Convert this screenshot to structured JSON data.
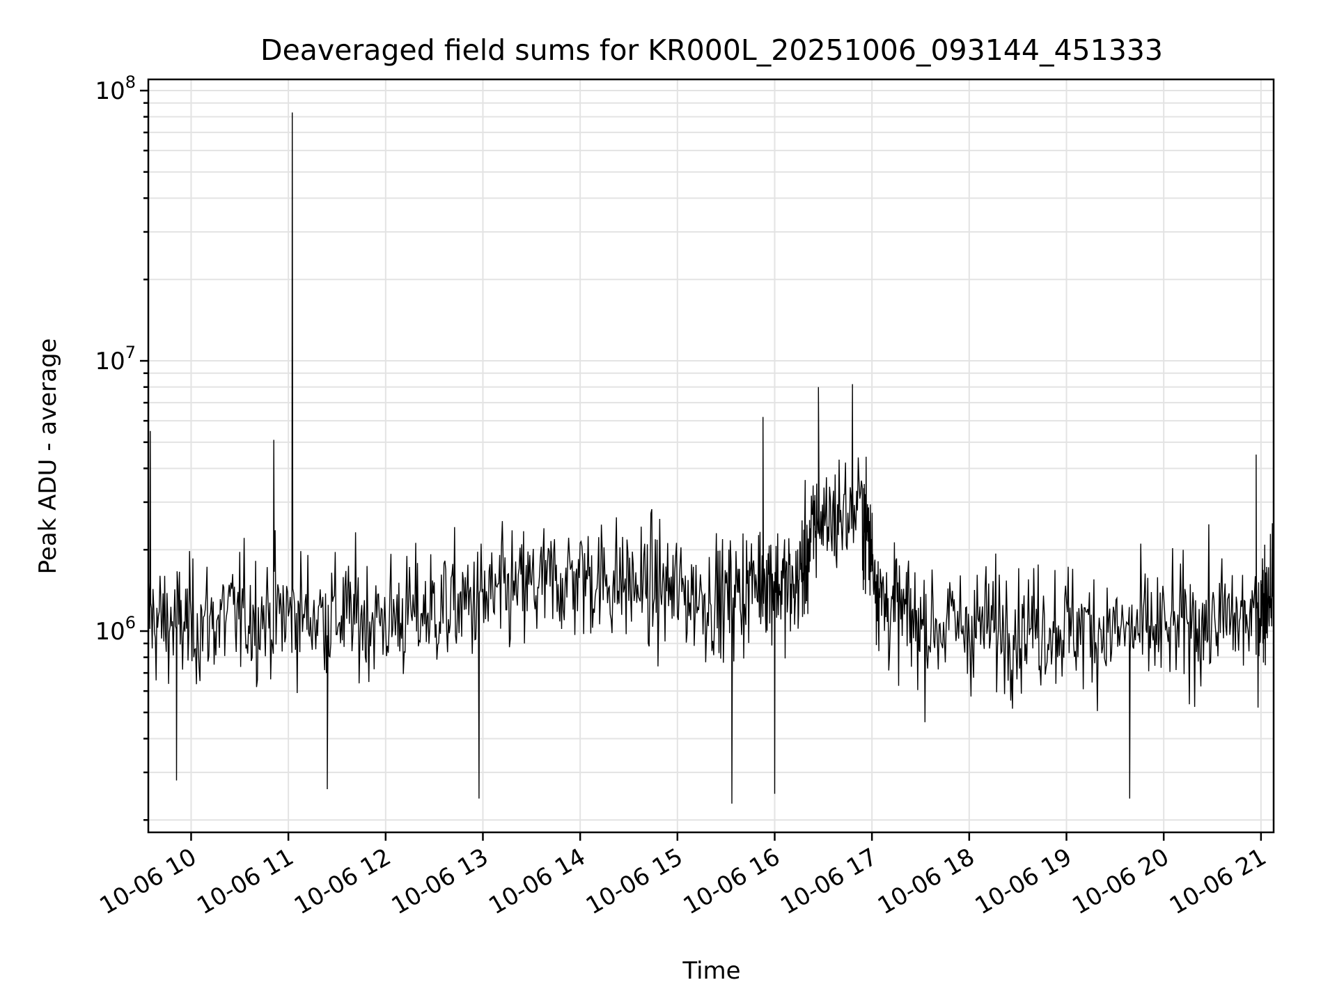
{
  "chart_data": {
    "type": "line",
    "title": "Deaveraged field sums for KR000L_20251006_093144_451333",
    "xlabel": "Time",
    "ylabel": "Peak ADU - average",
    "yscale": "log",
    "ylim": [
      180000,
      110000000
    ],
    "xlim_hours": [
      9.56,
      21.13
    ],
    "grid": true,
    "x_ticks": [
      {
        "hour": 10,
        "label": "10-06 10"
      },
      {
        "hour": 11,
        "label": "10-06 11"
      },
      {
        "hour": 12,
        "label": "10-06 12"
      },
      {
        "hour": 13,
        "label": "10-06 13"
      },
      {
        "hour": 14,
        "label": "10-06 14"
      },
      {
        "hour": 15,
        "label": "10-06 15"
      },
      {
        "hour": 16,
        "label": "10-06 16"
      },
      {
        "hour": 17,
        "label": "10-06 17"
      },
      {
        "hour": 18,
        "label": "10-06 18"
      },
      {
        "hour": 19,
        "label": "10-06 19"
      },
      {
        "hour": 20,
        "label": "10-06 20"
      },
      {
        "hour": 21,
        "label": "10-06 21"
      }
    ],
    "y_ticks": [
      {
        "value": 1000000,
        "base": "10",
        "exp": "6"
      },
      {
        "value": 10000000,
        "base": "10",
        "exp": "7"
      },
      {
        "value": 100000000,
        "base": "10",
        "exp": "8"
      }
    ],
    "series": [
      {
        "name": "Peak ADU - average",
        "color": "#000000",
        "samples_per_segment": 55,
        "baseline_envelope": [
          {
            "hour": 9.56,
            "median": 1100000
          },
          {
            "hour": 10.0,
            "median": 1050000
          },
          {
            "hour": 10.5,
            "median": 1150000
          },
          {
            "hour": 11.0,
            "median": 1150000
          },
          {
            "hour": 11.5,
            "median": 1150000
          },
          {
            "hour": 12.0,
            "median": 1100000
          },
          {
            "hour": 12.5,
            "median": 1200000
          },
          {
            "hour": 13.0,
            "median": 1300000
          },
          {
            "hour": 13.5,
            "median": 1450000
          },
          {
            "hour": 14.0,
            "median": 1600000
          },
          {
            "hour": 14.5,
            "median": 1500000
          },
          {
            "hour": 15.0,
            "median": 1400000
          },
          {
            "hour": 15.5,
            "median": 1300000
          },
          {
            "hour": 15.9,
            "median": 1600000
          },
          {
            "hour": 16.2,
            "median": 1400000
          },
          {
            "hour": 16.45,
            "median": 2600000
          },
          {
            "hour": 16.9,
            "median": 2800000
          },
          {
            "hour": 17.1,
            "median": 1300000
          },
          {
            "hour": 17.5,
            "median": 1050000
          },
          {
            "hour": 18.0,
            "median": 1050000
          },
          {
            "hour": 18.5,
            "median": 1050000
          },
          {
            "hour": 19.0,
            "median": 1050000
          },
          {
            "hour": 19.5,
            "median": 1000000
          },
          {
            "hour": 20.0,
            "median": 1000000
          },
          {
            "hour": 20.5,
            "median": 1100000
          },
          {
            "hour": 20.95,
            "median": 1100000
          },
          {
            "hour": 21.13,
            "median": 1600000
          }
        ],
        "notable_points": [
          {
            "hour": 9.58,
            "value": 5500000
          },
          {
            "hour": 9.85,
            "value": 280000
          },
          {
            "hour": 10.85,
            "value": 5100000
          },
          {
            "hour": 11.04,
            "value": 83000000
          },
          {
            "hour": 11.4,
            "value": 260000
          },
          {
            "hour": 12.96,
            "value": 240000
          },
          {
            "hour": 15.56,
            "value": 230000
          },
          {
            "hour": 15.88,
            "value": 6200000
          },
          {
            "hour": 16.0,
            "value": 250000
          },
          {
            "hour": 16.45,
            "value": 8000000
          },
          {
            "hour": 16.8,
            "value": 8200000
          },
          {
            "hour": 19.65,
            "value": 240000
          },
          {
            "hour": 20.95,
            "value": 4500000
          }
        ]
      }
    ]
  }
}
